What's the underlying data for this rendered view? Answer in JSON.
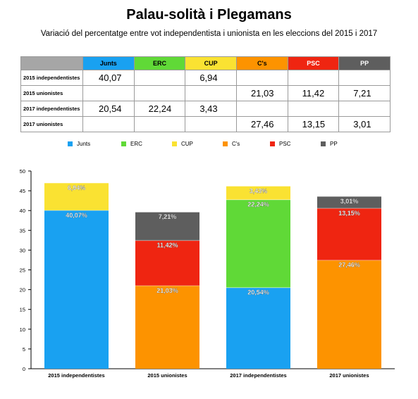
{
  "title": "Palau-solità i Plegamans",
  "subtitle": "Variació del percentatge entre vot independentista i unionista en les eleccions del 2015 i 2017",
  "colors": {
    "Junts": "#19a1f1",
    "ERC": "#60d937",
    "CUP": "#fae232",
    "C's": "#fd9300",
    "PSC": "#ef2511",
    "PP": "#5e5e5e"
  },
  "table": {
    "headers": [
      "Junts",
      "ERC",
      "CUP",
      "C's",
      "PSC",
      "PP"
    ],
    "rows": [
      {
        "label": "2015 independentistes",
        "cells": [
          "40,07",
          "",
          "6,94",
          "",
          "",
          ""
        ]
      },
      {
        "label": "2015 unionistes",
        "cells": [
          "",
          "",
          "",
          "21,03",
          "11,42",
          "7,21"
        ]
      },
      {
        "label": "2017 independentistes",
        "cells": [
          "20,54",
          "22,24",
          "3,43",
          "",
          "",
          ""
        ]
      },
      {
        "label": "2017 unionistes",
        "cells": [
          "",
          "",
          "",
          "27,46",
          "13,15",
          "3,01"
        ]
      }
    ]
  },
  "chart_data": {
    "type": "bar",
    "stacked": true,
    "title": "Palau-solità i Plegamans",
    "subtitle": "Variació del percentatge entre vot independentista i unionista en les eleccions del 2015 i 2017",
    "categories": [
      "2015 independentistes",
      "2015 unionistes",
      "2017 independentistes",
      "2017 unionistes"
    ],
    "series": [
      {
        "name": "Junts",
        "values": [
          40.07,
          0,
          20.54,
          0
        ],
        "labels": [
          "40,07%",
          "",
          "20,54%",
          ""
        ]
      },
      {
        "name": "ERC",
        "values": [
          0,
          0,
          22.24,
          0
        ],
        "labels": [
          "",
          "",
          "22,24%",
          ""
        ]
      },
      {
        "name": "CUP",
        "values": [
          6.94,
          0,
          3.43,
          0
        ],
        "labels": [
          "6,94%",
          "",
          "3,43%",
          ""
        ]
      },
      {
        "name": "C's",
        "values": [
          0,
          21.03,
          0,
          27.46
        ],
        "labels": [
          "",
          "21,03%",
          "",
          "27,46%"
        ]
      },
      {
        "name": "PSC",
        "values": [
          0,
          11.42,
          0,
          13.15
        ],
        "labels": [
          "",
          "11,42%",
          "",
          "13,15%"
        ]
      },
      {
        "name": "PP",
        "values": [
          0,
          7.21,
          0,
          3.01
        ],
        "labels": [
          "",
          "7,21%",
          "",
          "3,01%"
        ]
      }
    ],
    "xlabel": "",
    "ylabel": "",
    "ylim": [
      0,
      50
    ],
    "yticks": [
      0,
      5,
      10,
      15,
      20,
      25,
      30,
      35,
      40,
      45,
      50
    ],
    "grid": false,
    "legend_position": "top"
  }
}
